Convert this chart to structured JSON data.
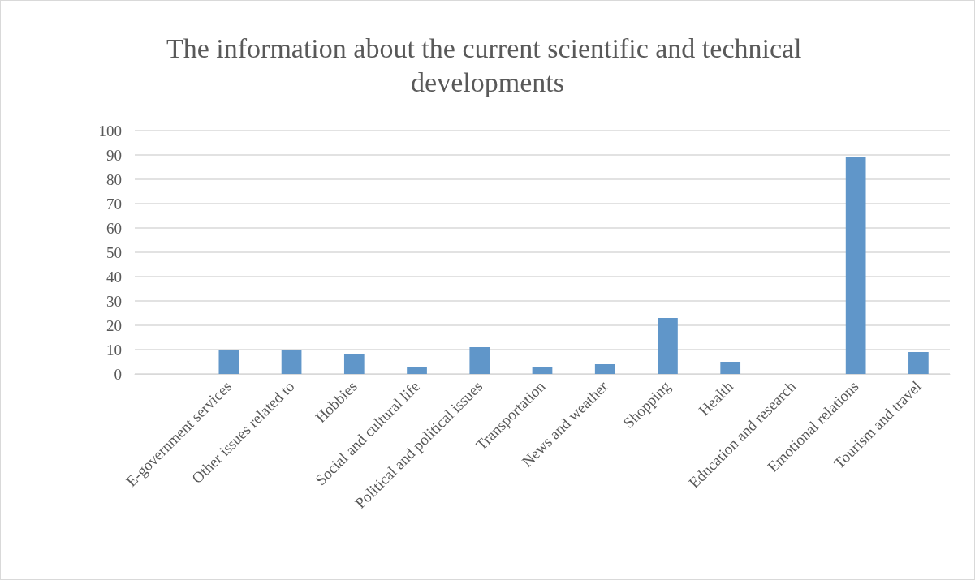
{
  "chart_data": {
    "type": "bar",
    "title": "The information about the current scientific and technical developments",
    "categories": [
      null,
      "E-government services",
      "Other issues related to",
      "Hobbies",
      "Social and cultural life",
      "Political and political issues",
      "Transportation",
      "News and weather",
      "Shopping",
      "Health",
      "Education and research",
      "Emotional relations",
      "Tourism and travel"
    ],
    "values": [
      null,
      10,
      10,
      8,
      3,
      11,
      3,
      4,
      23,
      5,
      0,
      89,
      9
    ],
    "color": "#6096c9",
    "ylim": [
      0,
      100
    ],
    "yticks": [
      0,
      10,
      20,
      30,
      40,
      50,
      60,
      70,
      80,
      90,
      100
    ],
    "grid": "y"
  }
}
